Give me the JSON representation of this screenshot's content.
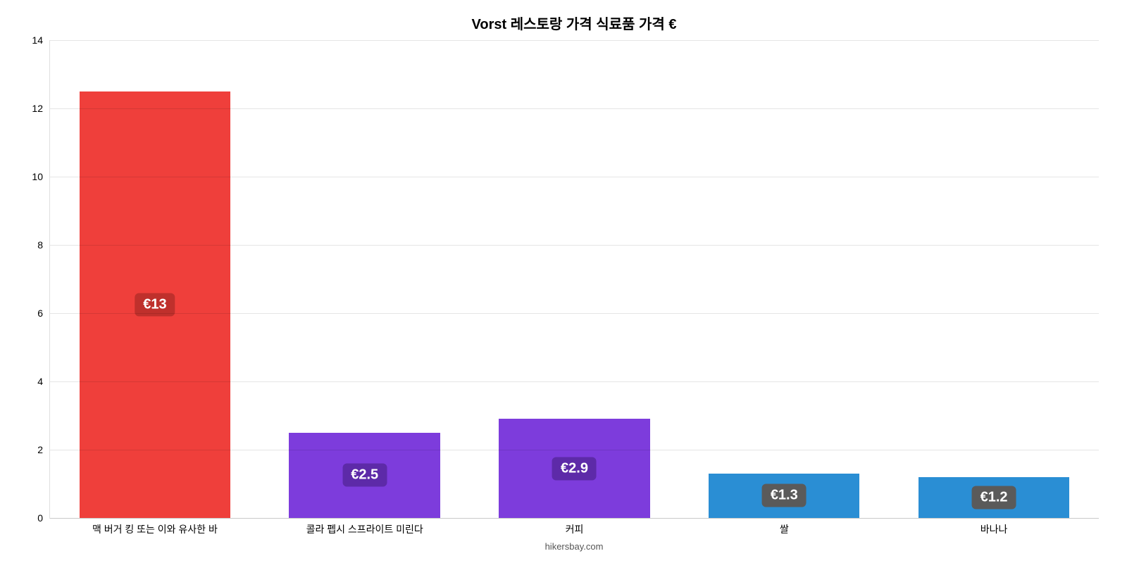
{
  "chart": {
    "type": "bar",
    "title": "Vorst 레스토랑 가격 식료품 가격 €",
    "title_fontsize": 20,
    "background_color": "#ffffff",
    "grid_color": "rgba(0,0,0,0.10)",
    "y": {
      "min": 0,
      "max": 14,
      "step": 2,
      "tick_color": "#000000",
      "tick_fontsize": 14
    },
    "x": {
      "label_color": "#000000",
      "label_fontsize": 14
    },
    "bar_width_ratio": 0.72,
    "value_label_fontsize": 20,
    "categories": [
      {
        "label": "맥 버거 킹 또는 이와 유사한 바",
        "value": 12.5,
        "display": "€13",
        "bar_color": "#ef3f3b",
        "badge_color": "#bf302c"
      },
      {
        "label": "콜라 펩시 스프라이트 미린다",
        "value": 2.5,
        "display": "€2.5",
        "bar_color": "#7d3cdc",
        "badge_color": "#5d2aa8"
      },
      {
        "label": "커피",
        "value": 2.9,
        "display": "€2.9",
        "bar_color": "#7d3cdc",
        "badge_color": "#5d2aa8"
      },
      {
        "label": "쌀",
        "value": 1.3,
        "display": "€1.3",
        "bar_color": "#2a8ed4",
        "badge_color": "#5a5a5a"
      },
      {
        "label": "바나나",
        "value": 1.2,
        "display": "€1.2",
        "bar_color": "#2a8ed4",
        "badge_color": "#5a5a5a"
      }
    ],
    "attribution": "hikersbay.com"
  }
}
